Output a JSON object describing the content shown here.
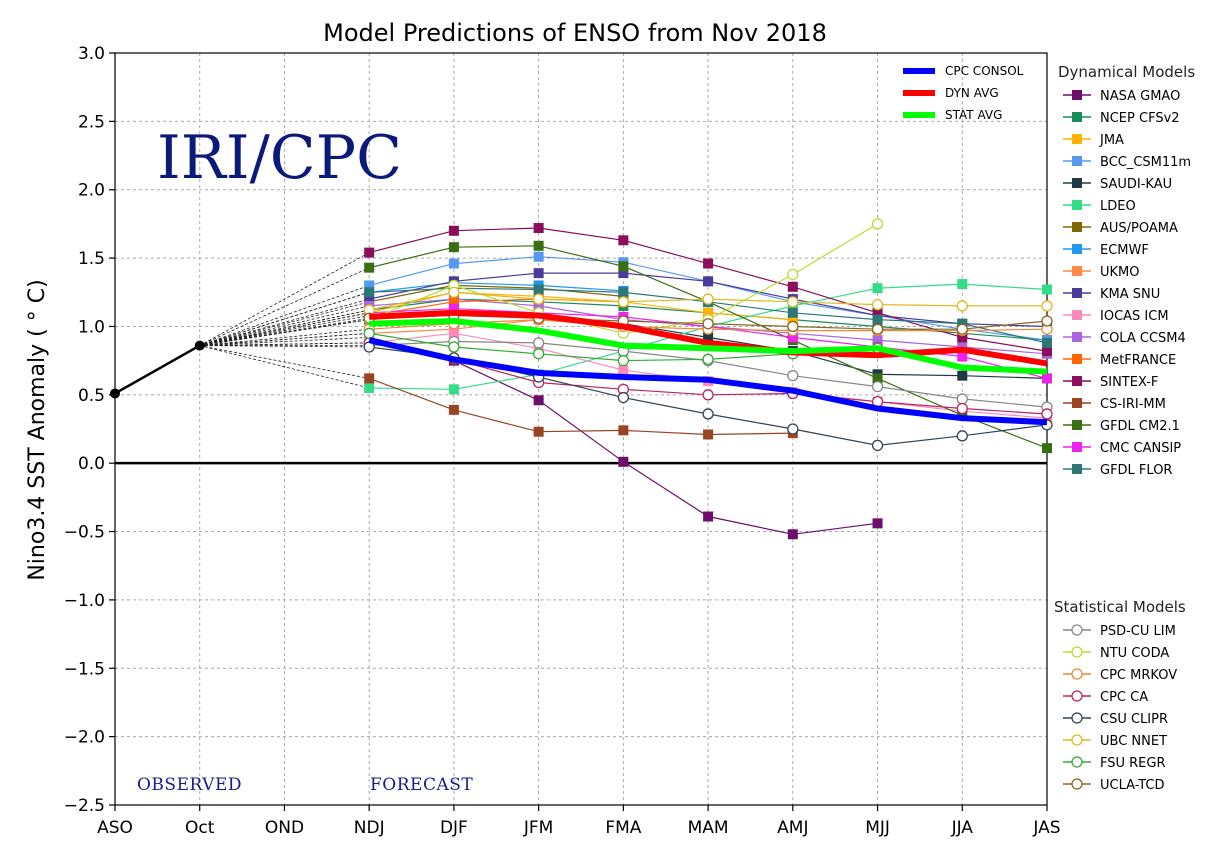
{
  "chart_data": {
    "type": "line",
    "title": "Model Predictions of ENSO from Nov 2018",
    "ylabel": "Nino3.4 SST Anomaly ( ° C)",
    "xlabel": "",
    "categories": [
      "ASO",
      "Oct",
      "OND",
      "NDJ",
      "DJF",
      "JFM",
      "FMA",
      "MAM",
      "AMJ",
      "MJJ",
      "JJA",
      "JAS"
    ],
    "ylim": [
      -2.5,
      3.0
    ],
    "yticks": [
      "3.0",
      "2.5",
      "2.0",
      "1.5",
      "1.0",
      "0.5",
      "0.0",
      "−0.5",
      "−1.0",
      "−1.5",
      "−2.0",
      "−2.5"
    ],
    "grid": true,
    "watermark": "IRI/CPC",
    "annotations": {
      "observed": "OBSERVED",
      "forecast": "FORECAST"
    },
    "observed": [
      0.51,
      0.86
    ],
    "main_legend": [
      {
        "name": "CPC CONSOL",
        "color": "#0000ff"
      },
      {
        "name": "DYN AVG",
        "color": "#ff0000"
      },
      {
        "name": "STAT AVG",
        "color": "#00ff00"
      }
    ],
    "dynamical_title": "Dynamical Models",
    "statistical_title": "Statistical Models",
    "dynamical": [
      {
        "name": "NASA GMAO",
        "color": "#6b0f6b",
        "values": [
          0.92,
          0.75,
          0.46,
          0.01,
          -0.39,
          -0.52,
          -0.44
        ]
      },
      {
        "name": "NCEP CFSv2",
        "color": "#1a8c5a",
        "values": [
          1.12,
          1.2,
          1.18,
          1.15,
          1.1,
          1.05,
          1.0,
          0.95,
          0.9
        ]
      },
      {
        "name": "JMA",
        "color": "#ffb300",
        "values": [
          1.1,
          1.25,
          1.22,
          1.18,
          1.1,
          1.05
        ]
      },
      {
        "name": "BCC_CSM11m",
        "color": "#5599ee",
        "values": [
          1.3,
          1.46,
          1.51,
          1.47,
          1.33,
          1.18,
          1.08,
          0.98,
          0.9
        ]
      },
      {
        "name": "SAUDI-KAU",
        "color": "#1e3a44",
        "values": [
          1.05,
          1.1,
          1.08,
          1.02,
          0.92,
          0.82,
          0.65,
          0.64,
          0.62
        ]
      },
      {
        "name": "LDEO",
        "color": "#33dd88",
        "values": [
          0.55,
          0.54,
          0.65,
          0.82,
          1.0,
          1.15,
          1.28,
          1.31,
          1.27
        ]
      },
      {
        "name": "AUS/POAMA",
        "color": "#806600",
        "values": [
          1.18,
          1.3,
          1.28,
          1.22
        ]
      },
      {
        "name": "ECMWF",
        "color": "#2299ee",
        "values": [
          1.25,
          1.32,
          1.3,
          1.26
        ]
      },
      {
        "name": "UKMO",
        "color": "#ff8844",
        "values": [
          0.95,
          0.98,
          1.05,
          1.0
        ]
      },
      {
        "name": "KMA SNU",
        "color": "#4b3a99",
        "values": [
          1.2,
          1.33,
          1.39,
          1.39,
          1.33,
          1.2,
          1.08,
          1.02,
          1.0
        ]
      },
      {
        "name": "IOCAS ICM",
        "color": "#ff88bb",
        "values": [
          0.88,
          0.95,
          0.84,
          0.68,
          0.6,
          0.52,
          0.45,
          0.38,
          0.33
        ]
      },
      {
        "name": "COLA CCSM4",
        "color": "#aa66dd",
        "values": [
          1.15,
          1.2,
          1.15,
          1.05,
          1.0,
          0.95,
          0.9,
          0.85,
          0.8
        ]
      },
      {
        "name": "MetFRANCE",
        "color": "#ff6600",
        "values": [
          1.08,
          1.18,
          1.2,
          1.18
        ]
      },
      {
        "name": "SINTEX-F",
        "color": "#8c0d5a",
        "values": [
          1.54,
          1.7,
          1.72,
          1.63,
          1.46,
          1.29,
          1.1,
          0.92,
          0.82
        ]
      },
      {
        "name": "CS-IRI-MM",
        "color": "#994422",
        "values": [
          0.62,
          0.39,
          0.23,
          0.24,
          0.21,
          0.22
        ]
      },
      {
        "name": "GFDL CM2.1",
        "color": "#3a6e12",
        "values": [
          1.43,
          1.58,
          1.59,
          1.44,
          1.18,
          0.9,
          0.62,
          0.35,
          0.11
        ]
      },
      {
        "name": "CMC CANSIP",
        "color": "#ee22ee",
        "values": [
          1.1,
          1.13,
          1.1,
          1.07,
          1.0,
          0.92,
          0.85,
          0.78,
          0.62
        ]
      },
      {
        "name": "GFDL FLOR",
        "color": "#2d7777",
        "values": [
          1.25,
          1.28,
          1.27,
          1.25,
          1.18,
          1.1,
          1.05,
          1.02,
          0.88
        ]
      }
    ],
    "statistical": [
      {
        "name": "PSD-CU LIM",
        "color": "#888888",
        "values": [
          0.86,
          0.89,
          0.88,
          0.82,
          0.75,
          0.64,
          0.56,
          0.47,
          0.41
        ]
      },
      {
        "name": "NTU CODA",
        "color": "#bbdd33",
        "values": [
          1.05,
          1.3,
          1.1,
          0.95,
          1.05,
          1.38,
          1.75
        ]
      },
      {
        "name": "CPC MRKOV",
        "color": "#ee8833",
        "values": [
          0.98,
          1.02,
          1.05,
          1.0,
          0.98,
          0.97,
          0.97,
          0.97,
          0.98
        ]
      },
      {
        "name": "CPC CA",
        "color": "#bb2266",
        "values": [
          0.88,
          0.76,
          0.59,
          0.54,
          0.5,
          0.51,
          0.45,
          0.4,
          0.36
        ]
      },
      {
        "name": "CSU CLIPR",
        "color": "#334455",
        "values": [
          0.85,
          0.77,
          0.63,
          0.48,
          0.36,
          0.25,
          0.13,
          0.2,
          0.28
        ]
      },
      {
        "name": "UBC NNET",
        "color": "#ddbb22",
        "values": [
          1.12,
          1.25,
          1.2,
          1.18,
          1.2,
          1.18,
          1.16,
          1.15,
          1.15
        ]
      },
      {
        "name": "FSU REGR",
        "color": "#33aa33",
        "values": [
          0.95,
          0.85,
          0.8,
          0.75,
          0.76,
          0.8,
          0.84
        ]
      },
      {
        "name": "UCLA-TCD",
        "color": "#886622",
        "values": [
          1.06,
          1.08,
          1.06,
          1.04,
          1.02,
          1.0,
          0.98,
          0.98,
          1.04
        ]
      }
    ],
    "averages": [
      {
        "name": "CPC CONSOL",
        "color": "#0000ff",
        "values": [
          0.9,
          0.76,
          0.66,
          0.63,
          0.61,
          0.53,
          0.4,
          0.33,
          0.3
        ]
      },
      {
        "name": "DYN AVG",
        "color": "#ff0000",
        "values": [
          1.07,
          1.1,
          1.08,
          1.0,
          0.88,
          0.81,
          0.79,
          0.83,
          0.73
        ]
      },
      {
        "name": "STAT AVG",
        "color": "#00ff00",
        "values": [
          1.02,
          1.04,
          0.97,
          0.86,
          0.84,
          0.82,
          0.84,
          0.7,
          0.67
        ]
      }
    ]
  }
}
